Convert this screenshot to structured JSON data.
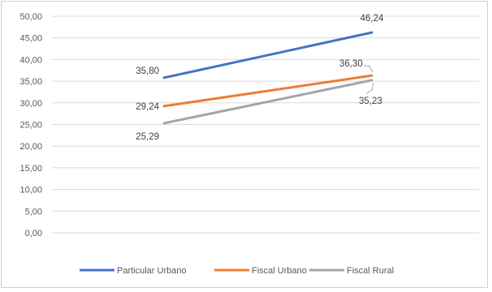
{
  "chart_data": {
    "type": "line",
    "title": "",
    "xlabel": "",
    "ylabel": "",
    "x": [
      "",
      ""
    ],
    "ylim": [
      0,
      50
    ],
    "y_ticks": [
      "0,00",
      "5,00",
      "10,00",
      "15,00",
      "20,00",
      "25,00",
      "30,00",
      "35,00",
      "40,00",
      "45,00",
      "50,00"
    ],
    "grid": true,
    "legend_position": "bottom",
    "series": [
      {
        "name": "Particular Urbano",
        "color": "#4472C4",
        "values": [
          35.8,
          46.24
        ],
        "labels": [
          "35,80",
          "46,24"
        ]
      },
      {
        "name": "Fiscal Urbano",
        "color": "#ED7D31",
        "values": [
          29.24,
          36.3
        ],
        "labels": [
          "29,24",
          "36,30"
        ]
      },
      {
        "name": "Fiscal Rural",
        "color": "#A5A5A5",
        "values": [
          25.29,
          35.23
        ],
        "labels": [
          "25,29",
          "35,23"
        ]
      }
    ]
  }
}
